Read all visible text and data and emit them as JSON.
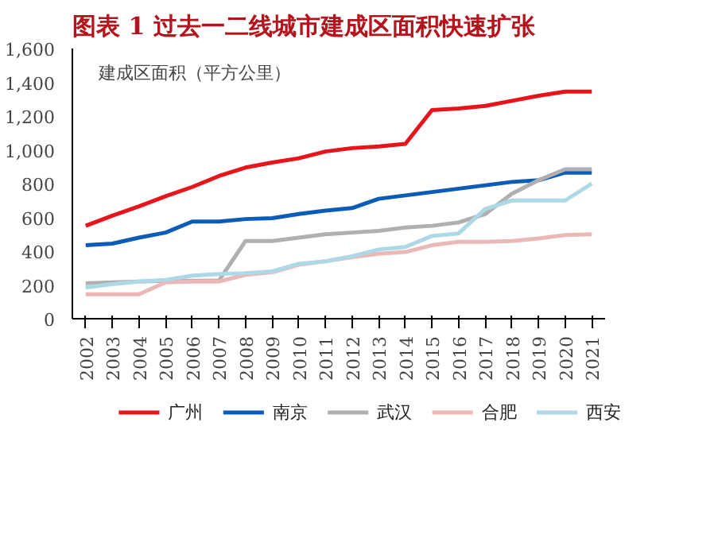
{
  "chart_data": {
    "type": "line",
    "title": "图表 1  过去一二线城市建成区面积快速扩张",
    "ylabel": "建成区面积（平方公里）",
    "categories": [
      "2002",
      "2003",
      "2004",
      "2005",
      "2006",
      "2007",
      "2008",
      "2009",
      "2010",
      "2011",
      "2012",
      "2013",
      "2014",
      "2015",
      "2016",
      "2017",
      "2018",
      "2019",
      "2020",
      "2021"
    ],
    "series": [
      {
        "name": "广州",
        "color": "#e8141c",
        "values": [
          550,
          610,
          665,
          725,
          780,
          845,
          895,
          925,
          950,
          990,
          1010,
          1020,
          1035,
          1235,
          1245,
          1260,
          1290,
          1320,
          1345,
          1345
        ]
      },
      {
        "name": "南京",
        "color": "#0a5cb8",
        "values": [
          435,
          445,
          480,
          510,
          575,
          575,
          590,
          595,
          620,
          640,
          655,
          710,
          730,
          750,
          770,
          790,
          810,
          820,
          865,
          865
        ]
      },
      {
        "name": "武汉",
        "color": "#b0b0b0",
        "values": [
          210,
          215,
          220,
          225,
          225,
          225,
          460,
          460,
          480,
          500,
          510,
          520,
          540,
          550,
          570,
          620,
          740,
          820,
          885,
          885
        ]
      },
      {
        "name": "合肥",
        "color": "#ebb8b8",
        "values": [
          145,
          145,
          145,
          215,
          220,
          220,
          260,
          275,
          320,
          340,
          365,
          385,
          395,
          435,
          455,
          455,
          460,
          475,
          495,
          500
        ]
      },
      {
        "name": "西安",
        "color": "#add8e6",
        "values": [
          185,
          205,
          220,
          230,
          255,
          265,
          270,
          280,
          325,
          340,
          370,
          410,
          425,
          490,
          505,
          650,
          700,
          700,
          700,
          800
        ]
      }
    ],
    "ylim": [
      0,
      1600
    ],
    "yticks": [
      {
        "value": 0,
        "label": "0"
      },
      {
        "value": 200,
        "label": "200"
      },
      {
        "value": 400,
        "label": "400"
      },
      {
        "value": 600,
        "label": "600"
      },
      {
        "value": 800,
        "label": "800"
      },
      {
        "value": 1000,
        "label": "1,000"
      },
      {
        "value": 1200,
        "label": "1,200"
      },
      {
        "value": 1400,
        "label": "1,400"
      },
      {
        "value": 1600,
        "label": "1,600"
      }
    ],
    "grid": false,
    "legend": "bottom",
    "marker": "none",
    "line_style": "solid"
  }
}
